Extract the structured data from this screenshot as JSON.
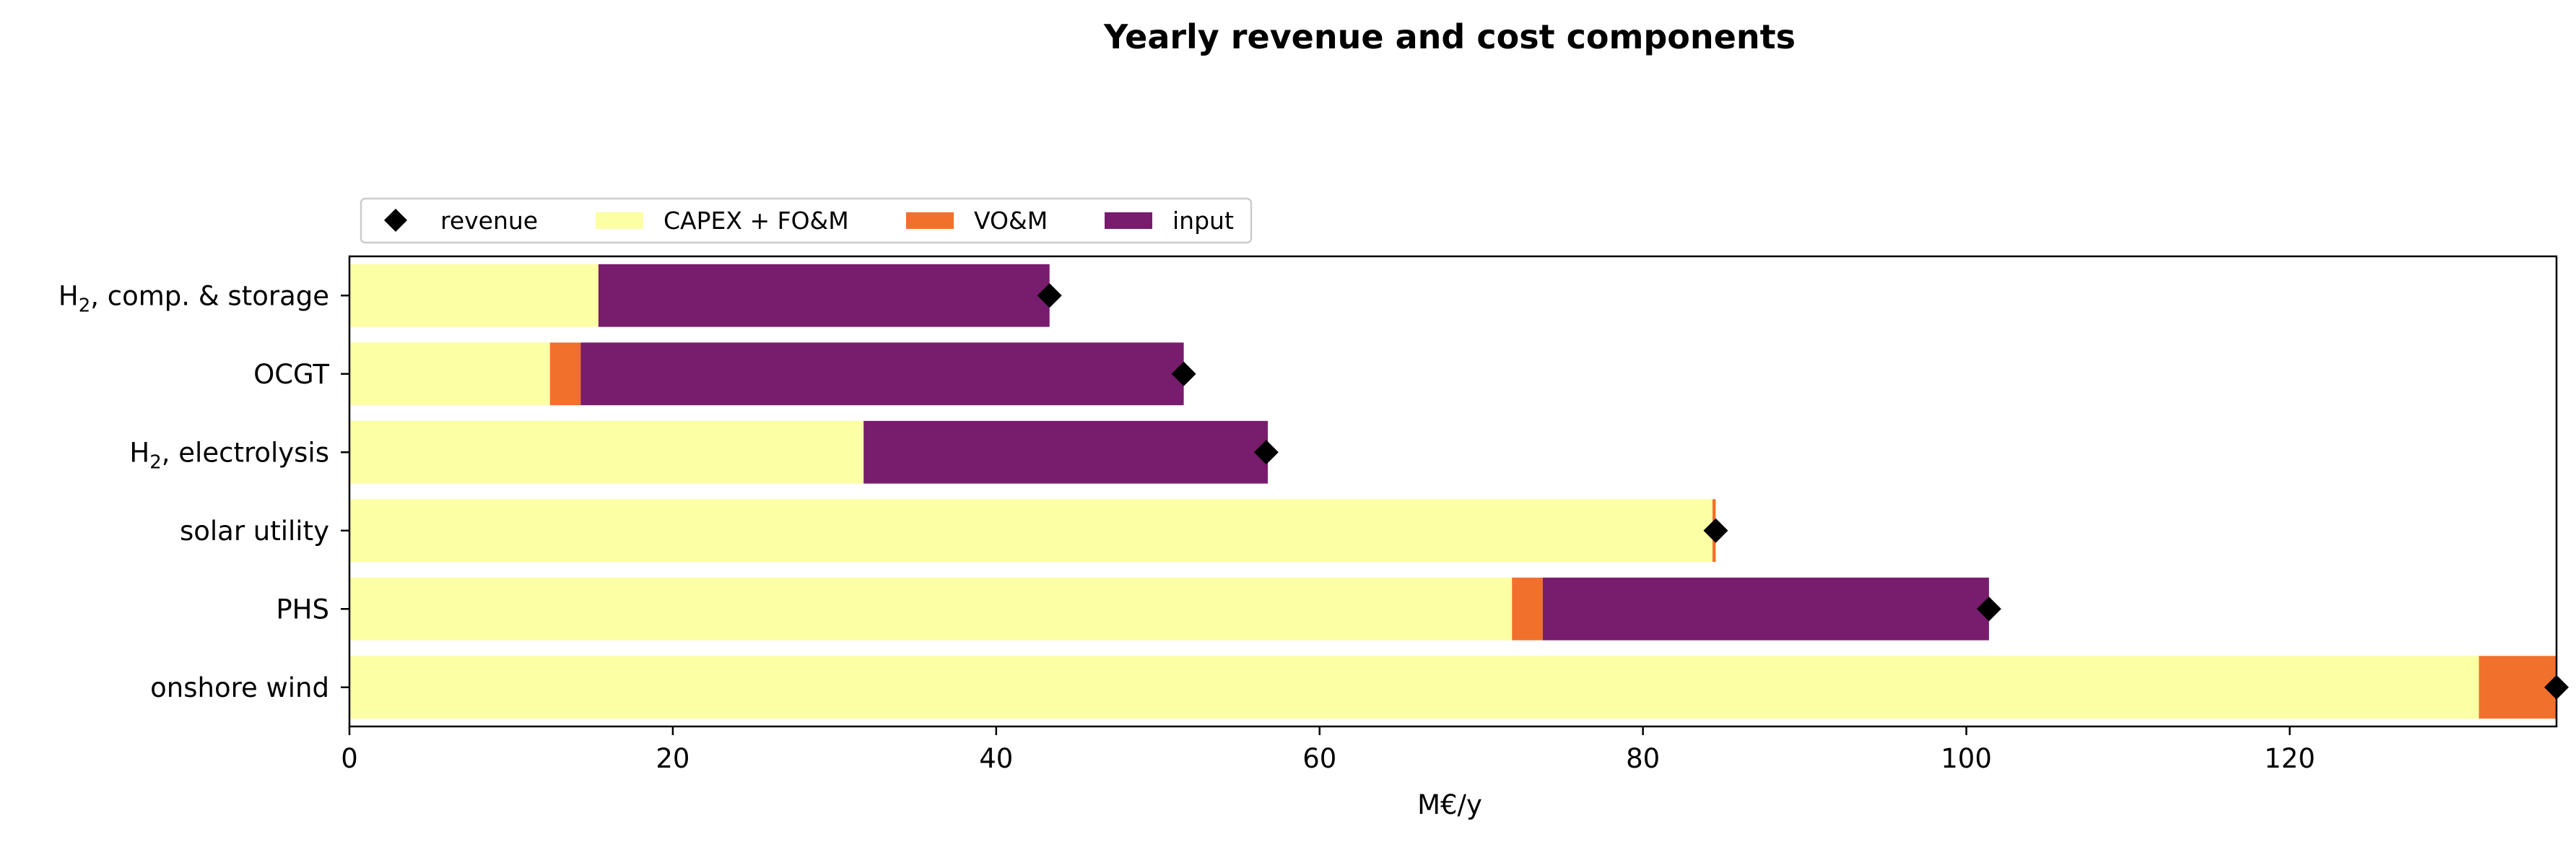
{
  "chart_data": {
    "type": "bar",
    "orientation": "horizontal",
    "stacked": true,
    "title": "Yearly revenue and cost components",
    "xlabel": "M€/y",
    "ylabel": "",
    "xlim": [
      0,
      136.5
    ],
    "xticks": [
      0,
      20,
      40,
      60,
      80,
      100,
      120
    ],
    "grid": false,
    "legend_position": "top-left",
    "categories": [
      {
        "label": "H",
        "sub": "2",
        "suffix": ", comp. & storage"
      },
      {
        "label": "OCGT",
        "sub": "",
        "suffix": ""
      },
      {
        "label": "H",
        "sub": "2",
        "suffix": ", electrolysis"
      },
      {
        "label": "solar utility",
        "sub": "",
        "suffix": ""
      },
      {
        "label": "PHS",
        "sub": "",
        "suffix": ""
      },
      {
        "label": "onshore wind",
        "sub": "",
        "suffix": ""
      }
    ],
    "series": [
      {
        "name": "CAPEX + FO&M",
        "color": "#fcffa4",
        "values": [
          15.4,
          12.4,
          31.8,
          84.3,
          71.9,
          131.7
        ]
      },
      {
        "name": "VO&M",
        "color": "#f1702b",
        "values": [
          0.0,
          1.9,
          0.0,
          0.2,
          1.9,
          4.8
        ]
      },
      {
        "name": "input",
        "color": "#781c6d",
        "values": [
          27.9,
          37.3,
          25.0,
          0.0,
          27.6,
          0.0
        ]
      }
    ],
    "revenue": {
      "name": "revenue",
      "color": "#000000",
      "marker": "diamond",
      "values": [
        43.3,
        51.6,
        56.7,
        84.5,
        101.4,
        136.5
      ]
    }
  }
}
